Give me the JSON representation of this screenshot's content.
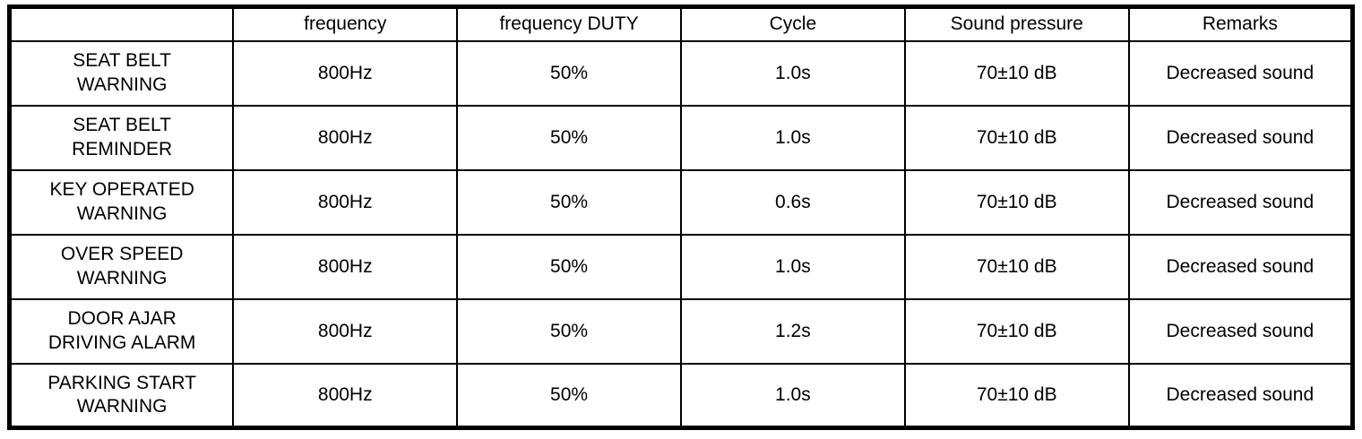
{
  "table": {
    "columns": [
      "",
      "frequency",
      "frequency DUTY",
      "Cycle",
      "Sound pressure",
      "Remarks"
    ],
    "rows": [
      {
        "name": "SEAT BELT\nWARNING",
        "frequency": "800Hz",
        "duty": "50%",
        "cycle": "1.0s",
        "sound_pressure": "70±10 dB",
        "remarks": "Decreased sound"
      },
      {
        "name": "SEAT BELT\nREMINDER",
        "frequency": "800Hz",
        "duty": "50%",
        "cycle": "1.0s",
        "sound_pressure": "70±10 dB",
        "remarks": "Decreased sound"
      },
      {
        "name": "KEY OPERATED\nWARNING",
        "frequency": "800Hz",
        "duty": "50%",
        "cycle": "0.6s",
        "sound_pressure": "70±10 dB",
        "remarks": "Decreased sound"
      },
      {
        "name": "OVER SPEED\nWARNING",
        "frequency": "800Hz",
        "duty": "50%",
        "cycle": "1.0s",
        "sound_pressure": "70±10 dB",
        "remarks": "Decreased sound"
      },
      {
        "name": "DOOR AJAR\nDRIVING ALARM",
        "frequency": "800Hz",
        "duty": "50%",
        "cycle": "1.2s",
        "sound_pressure": "70±10 dB",
        "remarks": "Decreased sound"
      },
      {
        "name": "PARKING START\nWARNING",
        "frequency": "800Hz",
        "duty": "50%",
        "cycle": "1.0s",
        "sound_pressure": "70±10 dB",
        "remarks": "Decreased sound"
      }
    ]
  }
}
